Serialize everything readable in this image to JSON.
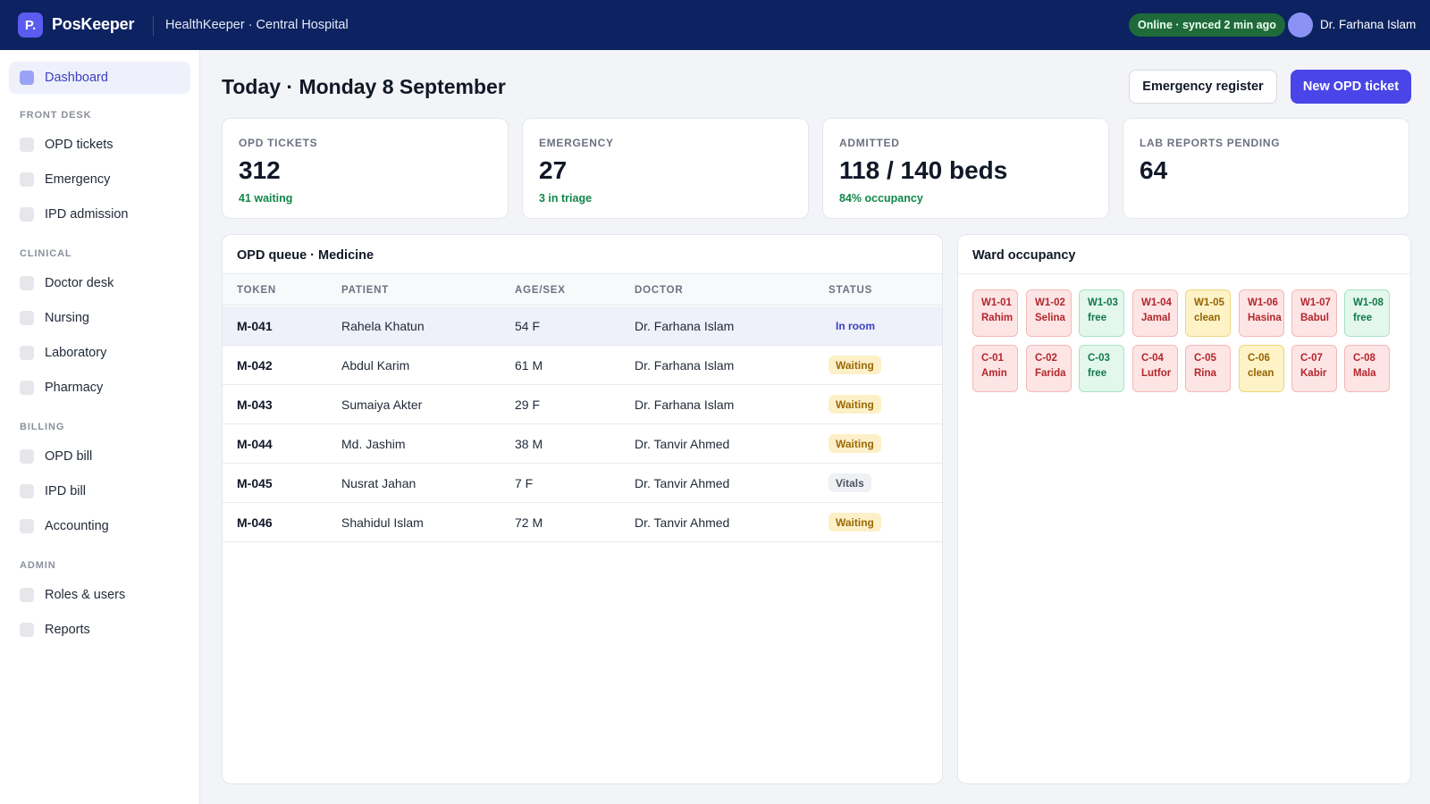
{
  "topbar": {
    "logo_letter": "P.",
    "brand": "PosKeeper",
    "facility": "HealthKeeper · Central Hospital",
    "sync_status": "Online · synced 2 min ago",
    "user_name": "Dr. Farhana Islam"
  },
  "sidebar": {
    "dashboard": "Dashboard",
    "sections": [
      {
        "title": "FRONT DESK",
        "items": [
          "OPD tickets",
          "Emergency",
          "IPD admission"
        ]
      },
      {
        "title": "CLINICAL",
        "items": [
          "Doctor desk",
          "Nursing",
          "Laboratory",
          "Pharmacy"
        ]
      },
      {
        "title": "BILLING",
        "items": [
          "OPD bill",
          "IPD bill",
          "Accounting"
        ]
      },
      {
        "title": "ADMIN",
        "items": [
          "Roles & users",
          "Reports"
        ]
      }
    ]
  },
  "header": {
    "title": "Today · Monday 8 September",
    "emergency_register": "Emergency register",
    "new_opd_ticket": "New OPD ticket"
  },
  "stats": [
    {
      "label": "OPD TICKETS",
      "value": "312",
      "sub": "41 waiting"
    },
    {
      "label": "EMERGENCY",
      "value": "27",
      "sub": "3 in triage"
    },
    {
      "label": "ADMITTED",
      "value": "118 / 140 beds",
      "sub": "84% occupancy"
    },
    {
      "label": "LAB REPORTS PENDING",
      "value": "64",
      "sub": ""
    }
  ],
  "queue": {
    "title": "OPD queue · Medicine",
    "columns": [
      "TOKEN",
      "PATIENT",
      "AGE/SEX",
      "DOCTOR",
      "STATUS"
    ],
    "rows": [
      {
        "token": "M-041",
        "patient": "Rahela Khatun",
        "agesex": "54 F",
        "doctor": "Dr. Farhana Islam",
        "status": "In room",
        "status_kind": "inroom"
      },
      {
        "token": "M-042",
        "patient": "Abdul Karim",
        "agesex": "61 M",
        "doctor": "Dr. Farhana Islam",
        "status": "Waiting",
        "status_kind": "waiting"
      },
      {
        "token": "M-043",
        "patient": "Sumaiya Akter",
        "agesex": "29 F",
        "doctor": "Dr. Farhana Islam",
        "status": "Waiting",
        "status_kind": "waiting"
      },
      {
        "token": "M-044",
        "patient": "Md. Jashim",
        "agesex": "38 M",
        "doctor": "Dr. Tanvir Ahmed",
        "status": "Waiting",
        "status_kind": "waiting"
      },
      {
        "token": "M-045",
        "patient": "Nusrat Jahan",
        "agesex": "7 F",
        "doctor": "Dr. Tanvir Ahmed",
        "status": "Vitals",
        "status_kind": "vitals"
      },
      {
        "token": "M-046",
        "patient": "Shahidul Islam",
        "agesex": "72 M",
        "doctor": "Dr. Tanvir Ahmed",
        "status": "Waiting",
        "status_kind": "waiting"
      }
    ]
  },
  "ward": {
    "title": "Ward occupancy",
    "beds": [
      {
        "code": "W1-01",
        "label": "Rahim",
        "state": "occupied"
      },
      {
        "code": "W1-02",
        "label": "Selina",
        "state": "occupied"
      },
      {
        "code": "W1-03",
        "label": "free",
        "state": "free"
      },
      {
        "code": "W1-04",
        "label": "Jamal",
        "state": "occupied"
      },
      {
        "code": "W1-05",
        "label": "clean",
        "state": "clean"
      },
      {
        "code": "W1-06",
        "label": "Hasina",
        "state": "occupied"
      },
      {
        "code": "W1-07",
        "label": "Babul",
        "state": "occupied"
      },
      {
        "code": "W1-08",
        "label": "free",
        "state": "free"
      },
      {
        "code": "C-01",
        "label": "Amin",
        "state": "occupied"
      },
      {
        "code": "C-02",
        "label": "Farida",
        "state": "occupied"
      },
      {
        "code": "C-03",
        "label": "free",
        "state": "free"
      },
      {
        "code": "C-04",
        "label": "Lutfor",
        "state": "occupied"
      },
      {
        "code": "C-05",
        "label": "Rina",
        "state": "occupied"
      },
      {
        "code": "C-06",
        "label": "clean",
        "state": "clean"
      },
      {
        "code": "C-07",
        "label": "Kabir",
        "state": "occupied"
      },
      {
        "code": "C-08",
        "label": "Mala",
        "state": "occupied"
      }
    ]
  },
  "colors": {
    "topbar": "#0d2260",
    "accent": "#4a45e8",
    "sync_green": "#1f6a3a",
    "positive_text": "#12874a"
  }
}
